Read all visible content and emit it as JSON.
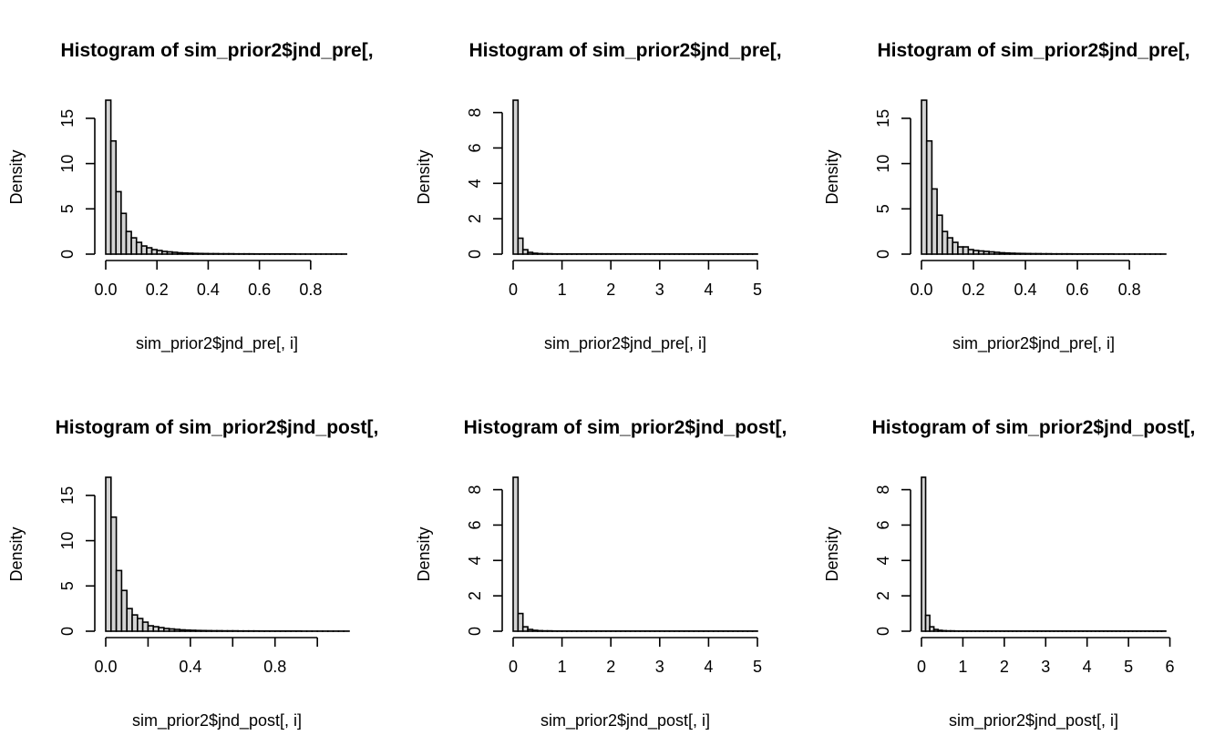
{
  "colors": {
    "bar_fill": "#d3d3d3",
    "bar_stroke": "#000000",
    "background": "#ffffff"
  },
  "chart_data": [
    {
      "type": "bar",
      "title": "Histogram of sim_prior2$jnd_pre[,",
      "xlabel": "sim_prior2$jnd_pre[, i]",
      "ylabel": "Density",
      "xlim": [
        0,
        0.95
      ],
      "ylim": [
        0,
        17
      ],
      "xticks": [
        0.0,
        0.2,
        0.4,
        0.6,
        0.8
      ],
      "xtick_labels": [
        "0.0",
        "0.2",
        "0.4",
        "0.6",
        "0.8"
      ],
      "yticks": [
        0,
        5,
        10,
        15
      ],
      "ytick_labels": [
        "0",
        "5",
        "10",
        "15"
      ],
      "bin_width": 0.02,
      "values": [
        17.0,
        12.5,
        6.9,
        4.5,
        2.5,
        1.8,
        1.3,
        0.9,
        0.7,
        0.5,
        0.4,
        0.3,
        0.25,
        0.2,
        0.15,
        0.12,
        0.1,
        0.08,
        0.07,
        0.06,
        0.05,
        0.05,
        0.04,
        0.04,
        0.04,
        0.03,
        0.03,
        0.03,
        0.03,
        0.02,
        0.02,
        0.02,
        0.02,
        0.02,
        0.02,
        0.02,
        0.02,
        0.01,
        0.01,
        0.01,
        0.01,
        0.01,
        0.01,
        0.01,
        0.01,
        0.01,
        0.01
      ]
    },
    {
      "type": "bar",
      "title": "Histogram of sim_prior2$jnd_pre[,",
      "xlabel": "sim_prior2$jnd_pre[, i]",
      "ylabel": "Density",
      "xlim": [
        0,
        5
      ],
      "ylim": [
        0,
        8.7
      ],
      "xticks": [
        0,
        1,
        2,
        3,
        4,
        5
      ],
      "xtick_labels": [
        "0",
        "1",
        "2",
        "3",
        "4",
        "5"
      ],
      "yticks": [
        0,
        2,
        4,
        6,
        8
      ],
      "ytick_labels": [
        "0",
        "2",
        "4",
        "6",
        "8"
      ],
      "bin_width": 0.1,
      "values": [
        8.7,
        0.9,
        0.25,
        0.1,
        0.05,
        0.03,
        0.02,
        0.02,
        0.01,
        0.01,
        0.01,
        0.01,
        0.01,
        0.01,
        0.01,
        0.01,
        0.01,
        0.01,
        0.01,
        0.01,
        0.01,
        0.01,
        0.01,
        0.01,
        0.01,
        0.01,
        0.01,
        0.01,
        0.01,
        0.01,
        0.01,
        0.01,
        0.01,
        0.01,
        0.01,
        0.01,
        0.01,
        0.01,
        0.01,
        0.01,
        0.01,
        0.01,
        0.01,
        0.01,
        0.01,
        0.01,
        0.01,
        0.01,
        0.01,
        0.01
      ]
    },
    {
      "type": "bar",
      "title": "Histogram of sim_prior2$jnd_pre[,",
      "xlabel": "sim_prior2$jnd_pre[, i]",
      "ylabel": "Density",
      "xlim": [
        0,
        0.94
      ],
      "ylim": [
        0,
        17
      ],
      "xticks": [
        0.0,
        0.2,
        0.4,
        0.6,
        0.8
      ],
      "xtick_labels": [
        "0.0",
        "0.2",
        "0.4",
        "0.6",
        "0.8"
      ],
      "yticks": [
        0,
        5,
        10,
        15
      ],
      "ytick_labels": [
        "0",
        "5",
        "10",
        "15"
      ],
      "bin_width": 0.02,
      "values": [
        17.0,
        12.5,
        7.2,
        4.3,
        2.5,
        1.8,
        1.3,
        0.8,
        0.8,
        0.5,
        0.4,
        0.35,
        0.3,
        0.25,
        0.2,
        0.15,
        0.12,
        0.1,
        0.08,
        0.07,
        0.06,
        0.05,
        0.05,
        0.04,
        0.04,
        0.03,
        0.03,
        0.03,
        0.03,
        0.02,
        0.02,
        0.02,
        0.02,
        0.02,
        0.02,
        0.02,
        0.02,
        0.01,
        0.01,
        0.01,
        0.01,
        0.01,
        0.01,
        0.01,
        0.01,
        0.01,
        0.01
      ]
    },
    {
      "type": "bar",
      "title": "Histogram of sim_prior2$jnd_post[,",
      "xlabel": "sim_prior2$jnd_post[, i]",
      "ylabel": "Density",
      "xlim": [
        0,
        1.15
      ],
      "ylim": [
        0,
        17
      ],
      "xticks": [
        0.0,
        0.2,
        0.4,
        0.6,
        0.8,
        1.0
      ],
      "xtick_labels": [
        "0.0",
        "",
        "0.4",
        "",
        "0.8",
        ""
      ],
      "yticks": [
        0,
        5,
        10,
        15
      ],
      "ytick_labels": [
        "0",
        "5",
        "10",
        "15"
      ],
      "bin_width": 0.025,
      "values": [
        17.0,
        12.6,
        6.7,
        4.5,
        2.5,
        1.8,
        1.4,
        1.0,
        0.6,
        0.5,
        0.4,
        0.3,
        0.25,
        0.2,
        0.15,
        0.12,
        0.1,
        0.08,
        0.07,
        0.06,
        0.05,
        0.05,
        0.04,
        0.04,
        0.04,
        0.03,
        0.03,
        0.03,
        0.03,
        0.02,
        0.02,
        0.02,
        0.02,
        0.02,
        0.02,
        0.02,
        0.02,
        0.01,
        0.01,
        0.01,
        0.01,
        0.01,
        0.01,
        0.01,
        0.01,
        0.01
      ]
    },
    {
      "type": "bar",
      "title": "Histogram of sim_prior2$jnd_post[,",
      "xlabel": "sim_prior2$jnd_post[, i]",
      "ylabel": "Density",
      "xlim": [
        0,
        5
      ],
      "ylim": [
        0,
        8.7
      ],
      "xticks": [
        0,
        1,
        2,
        3,
        4,
        5
      ],
      "xtick_labels": [
        "0",
        "1",
        "2",
        "3",
        "4",
        "5"
      ],
      "yticks": [
        0,
        2,
        4,
        6,
        8
      ],
      "ytick_labels": [
        "0",
        "2",
        "4",
        "6",
        "8"
      ],
      "bin_width": 0.1,
      "values": [
        8.7,
        1.0,
        0.25,
        0.1,
        0.05,
        0.03,
        0.02,
        0.02,
        0.01,
        0.01,
        0.01,
        0.01,
        0.01,
        0.01,
        0.01,
        0.01,
        0.01,
        0.01,
        0.01,
        0.01,
        0.01,
        0.01,
        0.01,
        0.01,
        0.01,
        0.01,
        0.01,
        0.01,
        0.01,
        0.01,
        0.01,
        0.01,
        0.01,
        0.01,
        0.01,
        0.01,
        0.01,
        0.01,
        0.01,
        0.01,
        0.01,
        0.01,
        0.01,
        0.01,
        0.01,
        0.01,
        0.01,
        0.01,
        0.01,
        0.01
      ]
    },
    {
      "type": "bar",
      "title": "Histogram of sim_prior2$jnd_post[,",
      "xlabel": "sim_prior2$jnd_post[, i]",
      "ylabel": "Density",
      "xlim": [
        0,
        5.9
      ],
      "ylim": [
        0,
        8.7
      ],
      "xticks": [
        0,
        1,
        2,
        3,
        4,
        5,
        6
      ],
      "xtick_labels": [
        "0",
        "1",
        "2",
        "3",
        "4",
        "5",
        "6"
      ],
      "yticks": [
        0,
        2,
        4,
        6,
        8
      ],
      "ytick_labels": [
        "0",
        "2",
        "4",
        "6",
        "8"
      ],
      "bin_width": 0.1,
      "values": [
        8.7,
        0.9,
        0.25,
        0.1,
        0.05,
        0.03,
        0.02,
        0.02,
        0.01,
        0.01,
        0.01,
        0.01,
        0.01,
        0.01,
        0.01,
        0.01,
        0.01,
        0.01,
        0.01,
        0.01,
        0.01,
        0.01,
        0.01,
        0.01,
        0.01,
        0.01,
        0.01,
        0.01,
        0.01,
        0.01,
        0.01,
        0.01,
        0.01,
        0.01,
        0.01,
        0.01,
        0.01,
        0.01,
        0.01,
        0.01,
        0.01,
        0.01,
        0.01,
        0.01,
        0.01,
        0.01,
        0.01,
        0.01,
        0.01,
        0.01,
        0.01,
        0.01,
        0.01,
        0.01,
        0.01,
        0.01,
        0.01,
        0.01,
        0.01
      ]
    }
  ]
}
